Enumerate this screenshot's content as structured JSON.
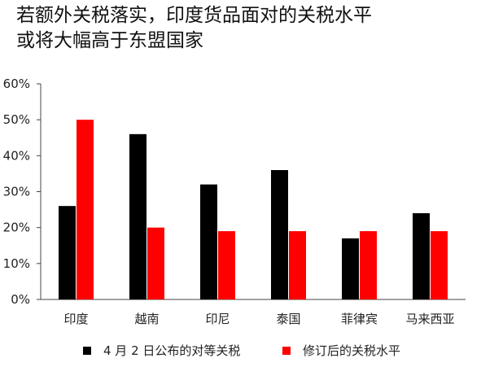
{
  "title_lines": [
    "若额外关税落实，印度货品面对的关税水平",
    "或将大幅高于东盟国家"
  ],
  "chart_data": {
    "type": "bar",
    "title": "若额外关税落实，印度货品面对的关税水平或将大幅高于东盟国家",
    "categories": [
      "印度",
      "越南",
      "印尼",
      "泰国",
      "菲律宾",
      "马来西亚"
    ],
    "series": [
      {
        "name": "4 月 2 日公布的对等关税",
        "color": "#000000",
        "values": [
          26,
          46,
          32,
          36,
          17,
          24
        ]
      },
      {
        "name": "修订后的关税水平",
        "color": "#ff0000",
        "values": [
          50,
          20,
          19,
          19,
          19,
          19
        ]
      }
    ],
    "ylim": [
      0,
      60
    ],
    "yticks": [
      "0%",
      "10%",
      "20%",
      "30%",
      "40%",
      "50%",
      "60%"
    ],
    "grid": false,
    "legend_position": "bottom"
  }
}
